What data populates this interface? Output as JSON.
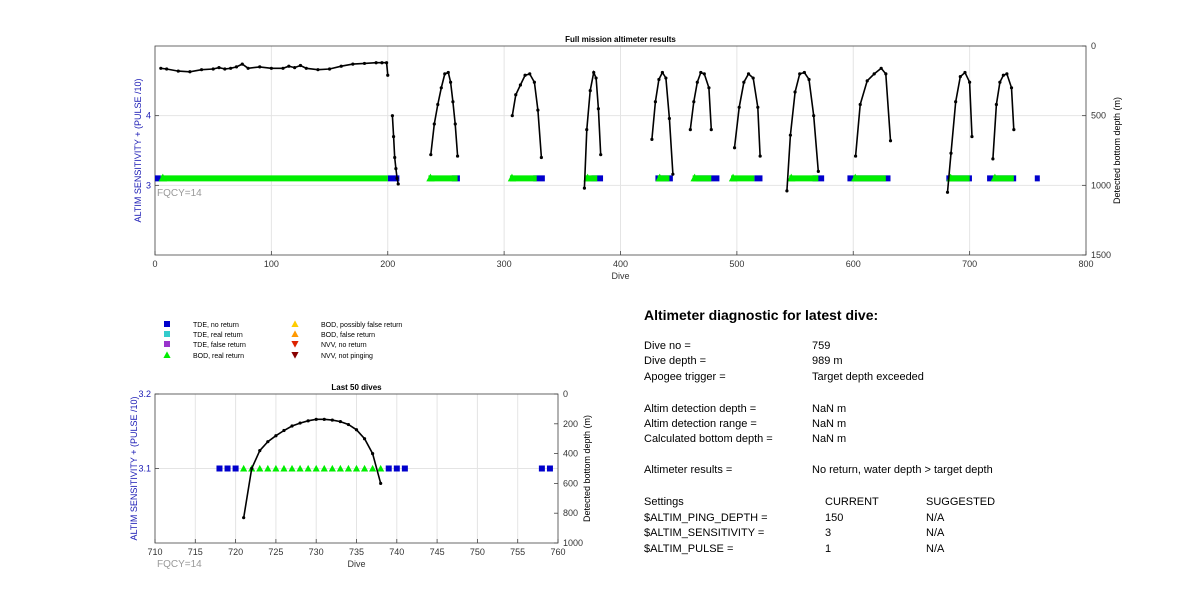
{
  "chart_data": [
    {
      "type": "line",
      "title": "Full mission altimeter results",
      "xlabel": "Dive",
      "ylabel_left": "ALTIM SENSITIVITY + (PULSE /10)",
      "ylabel_right": "Detected bottom depth (m)",
      "xlim": [
        0,
        800
      ],
      "ylim_left": [
        2.0,
        5.0
      ],
      "ylim_right": [
        1500,
        0
      ],
      "x_ticks": [
        0,
        100,
        200,
        300,
        400,
        500,
        600,
        700,
        800
      ],
      "y_left_ticks": [
        3,
        4
      ],
      "y_right_ticks": [
        0,
        500,
        1000,
        1500
      ],
      "grid": true,
      "annotation": "FQCY=14",
      "marker_series": [
        {
          "name": "TDE, no return",
          "color": "#0000cc",
          "marker": "square",
          "level": 3.1,
          "x_ranges": [
            [
              0,
              5
            ],
            [
              200,
              210
            ],
            [
              255,
              262
            ],
            [
              325,
              335
            ],
            [
              375,
              385
            ],
            [
              430,
              445
            ],
            [
              465,
              485
            ],
            [
              515,
              522
            ],
            [
              565,
              575
            ],
            [
              595,
              632
            ],
            [
              680,
              702
            ],
            [
              715,
              740
            ],
            [
              756,
              760
            ]
          ]
        },
        {
          "name": "BOD, real return",
          "color": "#00ee00",
          "marker": "triangle",
          "level": 3.1,
          "x_ranges": [
            [
              5,
              200
            ],
            [
              235,
              260
            ],
            [
              305,
              328
            ],
            [
              370,
              380
            ],
            [
              432,
              442
            ],
            [
              462,
              478
            ],
            [
              495,
              515
            ],
            [
              545,
              570
            ],
            [
              600,
              628
            ],
            [
              682,
              700
            ],
            [
              720,
              738
            ]
          ]
        }
      ],
      "series": [
        {
          "name": "Detected bottom depth",
          "axis": "right",
          "color": "#000000",
          "segments": [
            {
              "x": [
                5,
                10,
                20,
                30,
                40,
                50,
                55,
                60,
                65,
                70,
                75,
                80,
                90,
                100,
                110,
                115,
                120,
                125,
                130,
                140,
                150,
                160,
                170,
                180,
                190,
                195,
                199,
                200
              ],
              "y": [
                160,
                165,
                180,
                185,
                170,
                165,
                155,
                165,
                160,
                150,
                130,
                160,
                150,
                160,
                160,
                145,
                155,
                140,
                160,
                170,
                165,
                145,
                130,
                125,
                120,
                120,
                120,
                210
              ]
            },
            {
              "x": [
                204,
                205,
                206,
                207,
                208,
                209
              ],
              "y": [
                500,
                650,
                800,
                880,
                950,
                990
              ]
            },
            {
              "x": [
                237,
                240,
                243,
                246,
                249,
                252,
                254,
                256,
                258,
                260
              ],
              "y": [
                780,
                560,
                420,
                300,
                200,
                190,
                260,
                400,
                560,
                790
              ]
            },
            {
              "x": [
                307,
                310,
                314,
                318,
                322,
                326,
                329,
                332
              ],
              "y": [
                500,
                350,
                280,
                210,
                200,
                260,
                460,
                800
              ]
            },
            {
              "x": [
                369,
                371,
                374,
                377,
                379,
                381,
                383
              ],
              "y": [
                1020,
                600,
                320,
                190,
                230,
                450,
                780
              ]
            },
            {
              "x": [
                427,
                430,
                433,
                436,
                439,
                442,
                445
              ],
              "y": [
                670,
                400,
                240,
                190,
                230,
                520,
                920
              ]
            },
            {
              "x": [
                460,
                463,
                466,
                469,
                472,
                476,
                478
              ],
              "y": [
                600,
                400,
                260,
                190,
                200,
                300,
                600
              ]
            },
            {
              "x": [
                498,
                502,
                506,
                510,
                514,
                518,
                520
              ],
              "y": [
                730,
                440,
                260,
                200,
                230,
                440,
                790
              ]
            },
            {
              "x": [
                543,
                546,
                550,
                554,
                558,
                562,
                566,
                570
              ],
              "y": [
                1040,
                640,
                330,
                200,
                190,
                240,
                500,
                900
              ]
            },
            {
              "x": [
                602,
                606,
                612,
                618,
                624,
                628,
                632
              ],
              "y": [
                790,
                420,
                250,
                200,
                160,
                200,
                680
              ]
            },
            {
              "x": [
                681,
                684,
                688,
                692,
                696,
                700,
                702
              ],
              "y": [
                1050,
                770,
                400,
                220,
                190,
                260,
                650
              ]
            },
            {
              "x": [
                720,
                723,
                726,
                729,
                732,
                736,
                738
              ],
              "y": [
                810,
                420,
                260,
                210,
                200,
                300,
                600
              ]
            }
          ]
        }
      ]
    },
    {
      "type": "line",
      "title": "Last 50 dives",
      "xlabel": "Dive",
      "ylabel_left": "ALTIM SENSITIVITY + (PULSE /10)",
      "ylabel_right": "Detected bottom depth (m)",
      "xlim": [
        710,
        760
      ],
      "ylim_left": [
        3.0,
        3.2
      ],
      "ylim_right": [
        1000,
        0
      ],
      "x_ticks": [
        710,
        715,
        720,
        725,
        730,
        735,
        740,
        745,
        750,
        755,
        760
      ],
      "y_left_ticks": [
        3.1,
        3.2
      ],
      "y_right_ticks": [
        0,
        200,
        400,
        600,
        800,
        1000
      ],
      "grid": true,
      "annotation": "FQCY=14",
      "marker_series": [
        {
          "name": "TDE, no return",
          "color": "#0000cc",
          "marker": "square",
          "level": 3.1,
          "x": [
            718,
            719,
            720,
            739,
            740,
            741,
            758,
            759
          ]
        },
        {
          "name": "BOD, real return",
          "color": "#00ee00",
          "marker": "triangle",
          "level": 3.1,
          "x": [
            721,
            722,
            723,
            724,
            725,
            726,
            727,
            728,
            729,
            730,
            731,
            732,
            733,
            734,
            735,
            736,
            737,
            738
          ]
        }
      ],
      "series": [
        {
          "name": "Detected bottom depth",
          "axis": "right",
          "color": "#000000",
          "x": [
            721,
            722,
            723,
            724,
            725,
            726,
            727,
            728,
            729,
            730,
            731,
            732,
            733,
            734,
            735,
            736,
            737,
            738
          ],
          "y": [
            830,
            500,
            380,
            320,
            280,
            245,
            215,
            195,
            180,
            170,
            170,
            175,
            185,
            205,
            240,
            300,
            400,
            600
          ]
        }
      ]
    }
  ],
  "legend": [
    {
      "label": "TDE, no return",
      "color": "#0000cc",
      "marker": "square"
    },
    {
      "label": "TDE, real return",
      "color": "#33cccc",
      "marker": "square"
    },
    {
      "label": "TDE, false return",
      "color": "#9933cc",
      "marker": "square"
    },
    {
      "label": "BOD, real return",
      "color": "#00ee00",
      "marker": "triangle"
    },
    {
      "label": "BOD, possibly false return",
      "color": "#ffcc00",
      "marker": "triangle"
    },
    {
      "label": "BOD, false return",
      "color": "#ff9900",
      "marker": "triangle"
    },
    {
      "label": "NVV, no return",
      "color": "#dd2200",
      "marker": "triangle-down"
    },
    {
      "label": "NVV, not pinging",
      "color": "#880000",
      "marker": "triangle-down"
    }
  ],
  "diagnostic": {
    "title": "Altimeter diagnostic for latest dive:",
    "rows": [
      {
        "label": "Dive no =",
        "value": "759"
      },
      {
        "label": "Dive depth =",
        "value": "989 m"
      },
      {
        "label": "Apogee trigger =",
        "value": "Target depth exceeded"
      },
      {
        "label": "Altim detection depth =",
        "value": "NaN m"
      },
      {
        "label": "Altim detection range =",
        "value": "NaN m"
      },
      {
        "label": "Calculated bottom depth =",
        "value": "NaN m"
      },
      {
        "label": "Altimeter results =",
        "value": "No return, water depth > target depth"
      }
    ],
    "settings_header": {
      "label": "Settings",
      "current": "CURRENT",
      "suggested": "SUGGESTED"
    },
    "settings": [
      {
        "label": "$ALTIM_PING_DEPTH =",
        "current": "150",
        "suggested": "N/A"
      },
      {
        "label": "$ALTIM_SENSITIVITY =",
        "current": "3",
        "suggested": "N/A"
      },
      {
        "label": "$ALTIM_PULSE =",
        "current": "1",
        "suggested": "N/A"
      }
    ]
  }
}
